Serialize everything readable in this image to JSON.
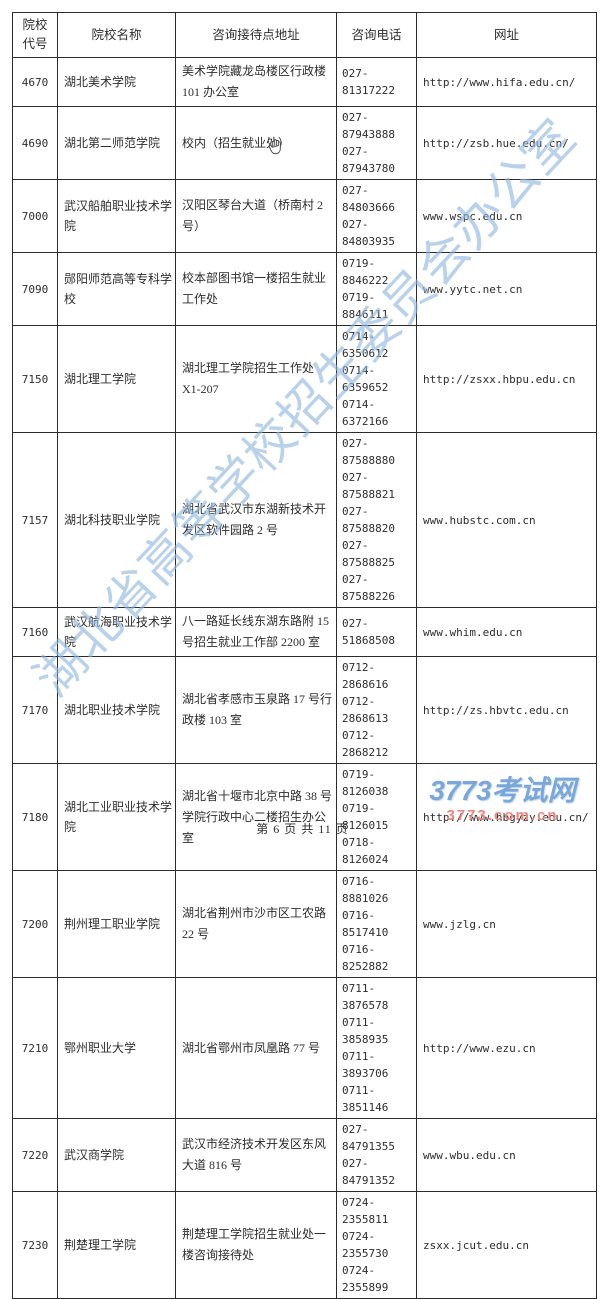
{
  "table": {
    "columns": [
      "院校\n代号",
      "院校名称",
      "咨询接待点地址",
      "咨询电话",
      "网址"
    ],
    "rows": [
      {
        "code": "4670",
        "name": "湖北美术学院",
        "address": "美术学院藏龙岛楼区行政楼 101 办公室",
        "phones": [
          "027-81317222"
        ],
        "website": "http://www.hifa.edu.cn/"
      },
      {
        "code": "4690",
        "name": "湖北第二师范学院",
        "address": "校内（招生就业处）",
        "phones": [
          "027-87943888",
          "027-87943780"
        ],
        "website": "http://zsb.hue.edu.cn/"
      },
      {
        "code": "7000",
        "name": "武汉船舶职业技术学院",
        "address": "汉阳区琴台大道（桥南村 2 号）",
        "phones": [
          "027-84803666",
          "027-84803935"
        ],
        "website": "www.wspc.edu.cn"
      },
      {
        "code": "7090",
        "name": "郧阳师范高等专科学校",
        "address": "校本部图书馆一楼招生就业工作处",
        "phones": [
          "0719-8846222",
          "0719-8846111"
        ],
        "website": "www.yytc.net.cn"
      },
      {
        "code": "7150",
        "name": "湖北理工学院",
        "address": "湖北理工学院招生工作处\nX1-207",
        "phones": [
          "0714-6350612",
          "0714-6359652",
          "0714-6372166"
        ],
        "website": "http://zsxx.hbpu.edu.cn"
      },
      {
        "code": "7157",
        "name": "湖北科技职业学院",
        "address": "湖北省武汉市东湖新技术开发区软件园路 2 号",
        "phones": [
          "027-87588880",
          "027-87588821",
          "027-87588820",
          "027-87588825",
          "027-87588226"
        ],
        "website": "www.hubstc.com.cn"
      },
      {
        "code": "7160",
        "name": "武汉航海职业技术学院",
        "address": "八一路延长线东湖东路附 15 号招生就业工作部 2200 室",
        "phones": [
          "027-51868508"
        ],
        "website": "www.whim.edu.cn"
      },
      {
        "code": "7170",
        "name": "湖北职业技术学院",
        "address": "湖北省孝感市玉泉路 17 号行政楼 103 室",
        "phones": [
          "0712-2868616",
          "0712-2868613",
          "0712-2868212"
        ],
        "website": "http://zs.hbvtc.edu.cn"
      },
      {
        "code": "7180",
        "name": "湖北工业职业技术学院",
        "address": "湖北省十堰市北京中路 38 号学院行政中心二楼招生办公室",
        "phones": [
          "0719-8126038",
          "0719-8126015",
          "0718-8126024"
        ],
        "website": "http://www.hbgyzy.edu.cn/"
      },
      {
        "code": "7200",
        "name": "荆州理工职业学院",
        "address": "湖北省荆州市沙市区工农路 22 号",
        "phones": [
          "0716-8881026",
          "0716-8517410",
          "0716-8252882"
        ],
        "website": "www.jzlg.cn"
      },
      {
        "code": "7210",
        "name": "鄂州职业大学",
        "address": "湖北省鄂州市凤凰路 77 号",
        "phones": [
          "0711-3876578",
          "0711-3858935",
          "0711-3893706",
          "0711-3851146"
        ],
        "website": "http://www.ezu.cn"
      },
      {
        "code": "7220",
        "name": "武汉商学院",
        "address": "武汉市经济技术开发区东风大道 816 号",
        "phones": [
          "027-84791355",
          "027-84791352"
        ],
        "website": "www.wbu.edu.cn"
      },
      {
        "code": "7230",
        "name": "荆楚理工学院",
        "address": "荆楚理工学院招生就业处一楼咨询接待处",
        "phones": [
          "0724-2355811",
          "0724-2355730",
          "0724-2355899"
        ],
        "website": "zsxx.jcut.edu.cn"
      }
    ]
  },
  "watermark": {
    "text": "湖北省高等学校招生委员会办公室",
    "color": "#8fb8e0"
  },
  "logo": {
    "title": "3773考试网",
    "subtitle": "3773.com.cn",
    "title_color": "#7aa6da",
    "subtitle_color": "#f0857c"
  },
  "footer": {
    "page_info": "第 6 页 共 11 页"
  },
  "cursor": {
    "type": "hand"
  }
}
